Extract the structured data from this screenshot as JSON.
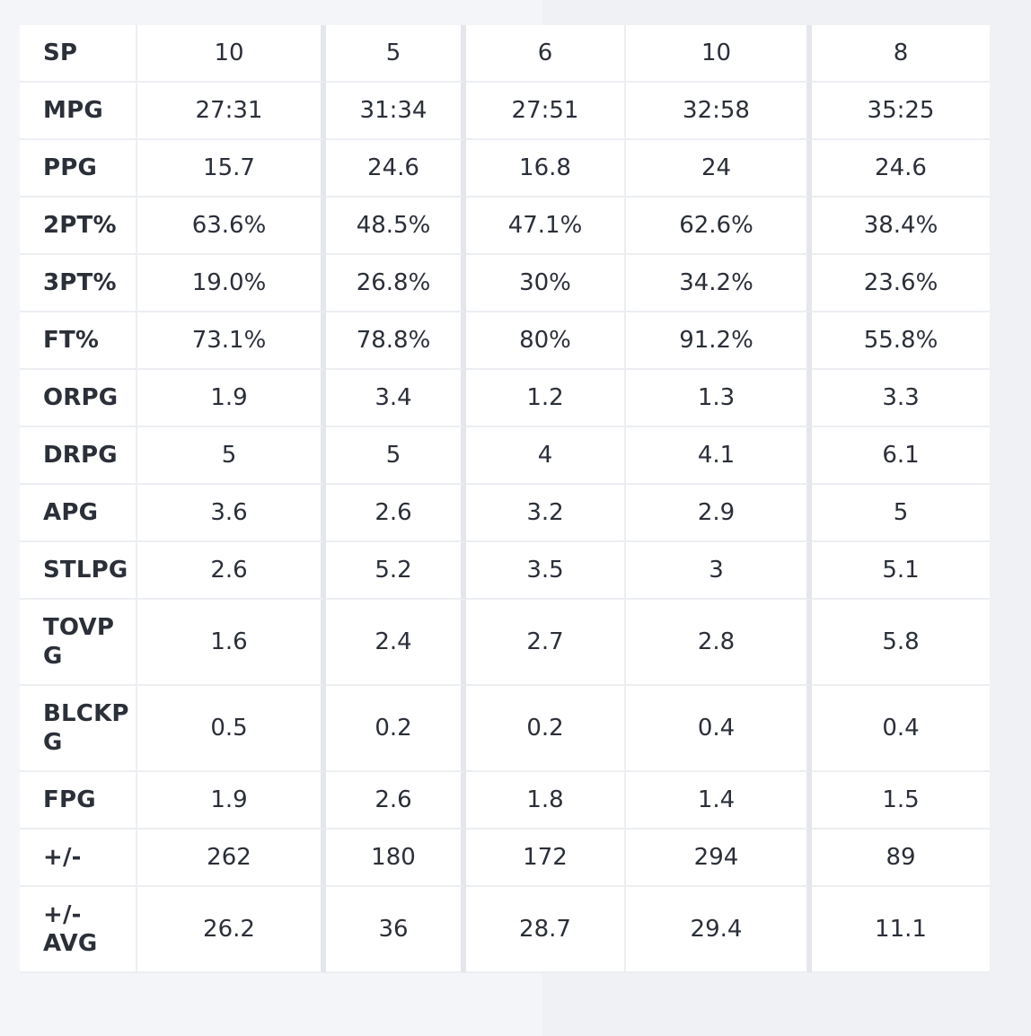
{
  "table": {
    "rows": [
      {
        "label": "SP",
        "values": [
          "10",
          "5",
          "6",
          "10",
          "8"
        ]
      },
      {
        "label": "MPG",
        "values": [
          "27:31",
          "31:34",
          "27:51",
          "32:58",
          "35:25"
        ]
      },
      {
        "label": "PPG",
        "values": [
          "15.7",
          "24.6",
          "16.8",
          "24",
          "24.6"
        ]
      },
      {
        "label": "2PT%",
        "values": [
          "63.6%",
          "48.5%",
          "47.1%",
          "62.6%",
          "38.4%"
        ]
      },
      {
        "label": "3PT%",
        "values": [
          "19.0%",
          "26.8%",
          "30%",
          "34.2%",
          "23.6%"
        ]
      },
      {
        "label": "FT%",
        "values": [
          "73.1%",
          "78.8%",
          "80%",
          "91.2%",
          "55.8%"
        ]
      },
      {
        "label": "ORPG",
        "values": [
          "1.9",
          "3.4",
          "1.2",
          "1.3",
          "3.3"
        ]
      },
      {
        "label": "DRPG",
        "values": [
          "5",
          "5",
          "4",
          "4.1",
          "6.1"
        ]
      },
      {
        "label": "APG",
        "values": [
          "3.6",
          "2.6",
          "3.2",
          "2.9",
          "5"
        ]
      },
      {
        "label": "STLPG",
        "values": [
          "2.6",
          "5.2",
          "3.5",
          "3",
          "5.1"
        ]
      },
      {
        "label": "TOVP\nG",
        "values": [
          "1.6",
          "2.4",
          "2.7",
          "2.8",
          "5.8"
        ]
      },
      {
        "label": "BLCKP\nG",
        "values": [
          "0.5",
          "0.2",
          "0.2",
          "0.4",
          "0.4"
        ]
      },
      {
        "label": "FPG",
        "values": [
          "1.9",
          "2.6",
          "1.8",
          "1.4",
          "1.5"
        ]
      },
      {
        "label": "+/-",
        "values": [
          "262",
          "180",
          "172",
          "294",
          "89"
        ]
      },
      {
        "label": "+/-\nAVG",
        "values": [
          "26.2",
          "36",
          "28.7",
          "29.4",
          "11.1"
        ]
      }
    ]
  }
}
